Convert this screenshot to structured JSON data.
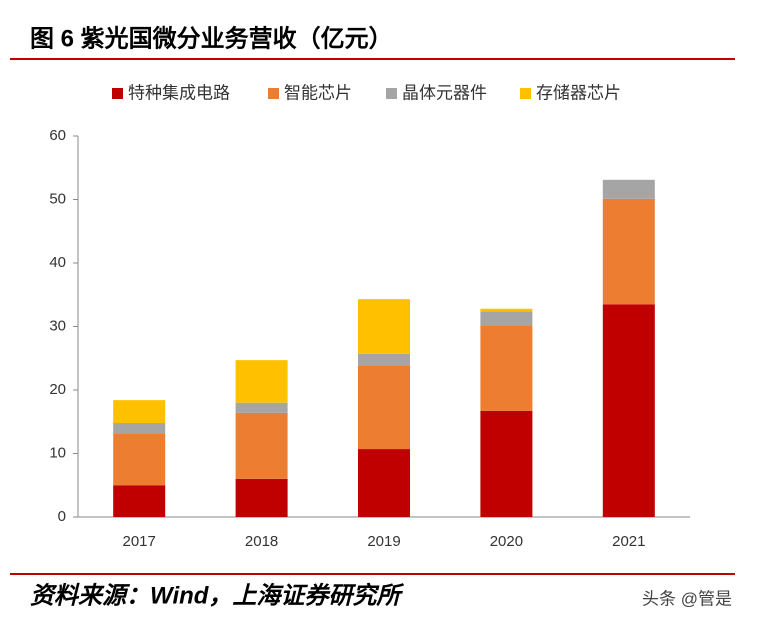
{
  "chart_data": {
    "type": "stacked_bar",
    "title": "图 6 紫光国微分业务营收（亿元）",
    "categories": [
      "2017",
      "2018",
      "2019",
      "2020",
      "2021"
    ],
    "series": [
      {
        "name": "特种集成电路",
        "color": "#c00000",
        "values": [
          5.0,
          6.0,
          10.7,
          16.7,
          33.5
        ]
      },
      {
        "name": "智能芯片",
        "color": "#ed7d31",
        "values": [
          8.2,
          10.4,
          13.2,
          13.5,
          16.6
        ]
      },
      {
        "name": "晶体元器件",
        "color": "#a5a5a5",
        "values": [
          1.6,
          1.6,
          1.8,
          2.2,
          3.0
        ]
      },
      {
        "name": "存储器芯片",
        "color": "#ffc000",
        "values": [
          3.6,
          6.7,
          8.6,
          0.4,
          0
        ]
      }
    ],
    "ylim": [
      0,
      60
    ],
    "yticks": [
      0,
      10,
      20,
      30,
      40,
      50,
      60
    ],
    "legend": "top",
    "source": "资料来源：Wind，上海证券研究所",
    "watermark": "头条 @管是"
  }
}
